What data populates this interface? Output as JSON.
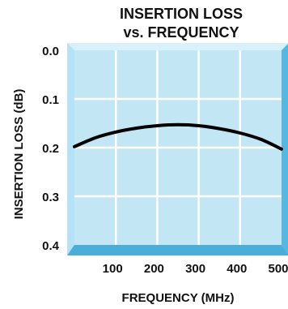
{
  "chart_data": {
    "type": "line",
    "title": [
      "INSERTION LOSS",
      "vs. FREQUENCY"
    ],
    "xlabel": "FREQUENCY (MHz)",
    "ylabel": "INSERTION LOSS (dB)",
    "xlim": [
      0,
      500
    ],
    "ylim": [
      0.0,
      0.4
    ],
    "y_inverted": true,
    "x_ticks": [
      100,
      200,
      300,
      400,
      500
    ],
    "x_tick_labels": [
      "100",
      "200",
      "300",
      "400",
      "500"
    ],
    "y_ticks": [
      0.0,
      0.1,
      0.2,
      0.3,
      0.4
    ],
    "y_tick_labels": [
      "0.0",
      "0.1",
      "0.2",
      "0.3",
      "0.4"
    ],
    "grid": true,
    "series": [
      {
        "x": [
          0,
          50,
          100,
          150,
          200,
          250,
          300,
          350,
          400,
          450,
          500
        ],
        "y": [
          0.198,
          0.18,
          0.168,
          0.16,
          0.155,
          0.153,
          0.155,
          0.161,
          0.17,
          0.183,
          0.203
        ]
      }
    ],
    "colors": {
      "plot_background": "#c3e6f5",
      "bevel_light": "#d9f1fb",
      "bevel_dark": "#56b8e0",
      "grid": "#ffffff",
      "curve": "#000000",
      "text": "#111111"
    }
  }
}
